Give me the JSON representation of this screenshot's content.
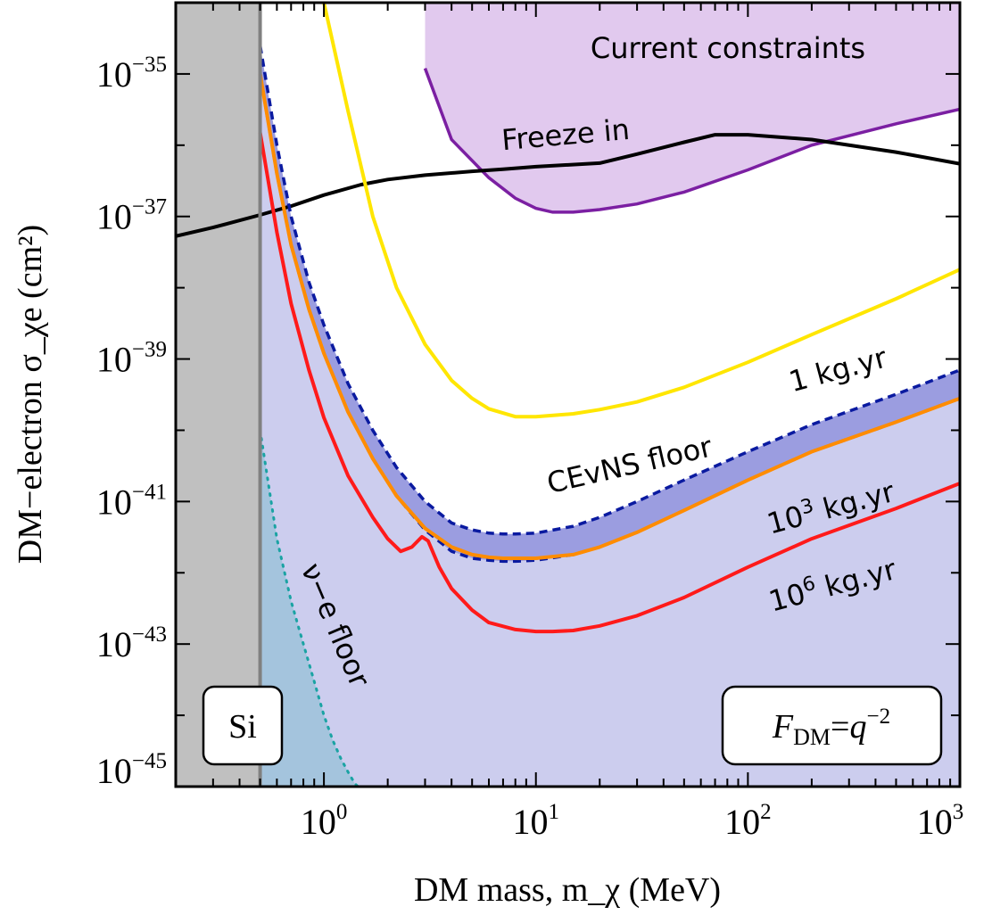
{
  "chart_data": {
    "type": "line",
    "title": "",
    "xlabel": "DM mass, m_χ (MeV)",
    "ylabel": "DM−electron σ_χe (cm²)",
    "xscale": "log",
    "yscale": "log",
    "xlim": [
      0.2,
      1000
    ],
    "ylim": [
      1e-45,
      1e-34
    ],
    "x_ticks": [
      {
        "base": "10",
        "exp": "0",
        "value": 1
      },
      {
        "base": "10",
        "exp": "1",
        "value": 10
      },
      {
        "base": "10",
        "exp": "2",
        "value": 100
      },
      {
        "base": "10",
        "exp": "3",
        "value": 1000
      }
    ],
    "y_ticks": [
      {
        "base": "10",
        "exp": "−35",
        "value": 1e-35
      },
      {
        "base": "10",
        "exp": "−37",
        "value": 1e-37
      },
      {
        "base": "10",
        "exp": "−39",
        "value": 1e-39
      },
      {
        "base": "10",
        "exp": "−41",
        "value": 1e-41
      },
      {
        "base": "10",
        "exp": "−43",
        "value": 1e-43
      },
      {
        "base": "10",
        "exp": "−45",
        "value": 1e-45
      }
    ],
    "threshold_mass": 0.5,
    "regions": [
      {
        "name": "Si threshold",
        "color": "#c0c0c0",
        "x_range": [
          0.2,
          0.5
        ]
      },
      {
        "name": "Current constraints",
        "color": "#e1c9ee",
        "edge_color": "#7b1fa2",
        "x": [
          3,
          4,
          6,
          8,
          10,
          12,
          15,
          20,
          30,
          50,
          100,
          200,
          500,
          1000
        ],
        "y": [
          1.2e-35,
          1.2e-36,
          3.5e-37,
          1.8e-37,
          1.3e-37,
          1.15e-37,
          1.15e-37,
          1.25e-37,
          1.5e-37,
          2.2e-37,
          4.5e-37,
          1e-36,
          2e-36,
          3.2e-36
        ]
      }
    ],
    "series": [
      {
        "name": "Freeze in",
        "color": "#000000",
        "x": [
          0.2,
          0.3,
          0.5,
          0.7,
          1,
          1.5,
          2,
          3,
          5,
          7,
          10,
          20,
          30,
          50,
          70,
          100,
          200,
          500,
          1000
        ],
        "y": [
          5.3e-38,
          7e-38,
          1.05e-37,
          1.4e-37,
          2e-37,
          2.8e-37,
          3.3e-37,
          3.8e-37,
          4.3e-37,
          4.6e-37,
          5e-37,
          5.6e-37,
          7.5e-37,
          1.1e-36,
          1.4e-36,
          1.4e-36,
          1.2e-36,
          8e-37,
          5.5e-37
        ]
      },
      {
        "name": "1 kg.yr",
        "color": "#ffe600",
        "x": [
          1.0,
          1.3,
          1.7,
          2.2,
          3,
          4,
          5,
          6,
          8,
          10,
          15,
          20,
          30,
          50,
          100,
          200,
          500,
          1000
        ],
        "y": [
          1e-34,
          3e-36,
          1e-37,
          1e-38,
          1.6e-39,
          5e-40,
          2.8e-40,
          2e-40,
          1.55e-40,
          1.55e-40,
          1.7e-40,
          1.95e-40,
          2.5e-40,
          4e-40,
          9e-40,
          2.2e-39,
          7e-39,
          1.8e-38
        ]
      },
      {
        "name": "CEvNS floor (upper)",
        "color": "#0a1aa0",
        "dashed": true,
        "x": [
          0.5,
          0.6,
          0.7,
          0.85,
          1,
          1.3,
          1.7,
          2.2,
          3,
          4,
          5,
          6,
          7,
          8,
          10,
          15,
          20,
          30,
          50,
          100,
          200,
          500,
          1000
        ],
        "y": [
          2.5e-35,
          1e-36,
          1e-37,
          1.2e-38,
          3e-39,
          4.5e-40,
          1e-40,
          3e-41,
          1e-41,
          5e-42,
          4e-42,
          3.6e-42,
          3.5e-42,
          3.5e-42,
          3.6e-42,
          4.5e-42,
          6e-42,
          1e-41,
          2e-41,
          5e-41,
          1.2e-40,
          3.2e-40,
          7e-40
        ]
      },
      {
        "name": "CEvNS floor (lower)",
        "color": "#0a1aa0",
        "dashed": true,
        "x": [
          0.5,
          0.6,
          0.7,
          0.85,
          1,
          1.3,
          1.7,
          2.2,
          3,
          4,
          5,
          6,
          7,
          8,
          10,
          15,
          20,
          30,
          50,
          100,
          200,
          500,
          1000
        ],
        "y": [
          1e-35,
          4e-37,
          4e-38,
          5e-39,
          1.2e-39,
          1.8e-40,
          4e-41,
          1.2e-41,
          4e-42,
          2e-42,
          1.6e-42,
          1.5e-42,
          1.45e-42,
          1.45e-42,
          1.5e-42,
          1.8e-42,
          2.3e-42,
          3.7e-42,
          7.5e-42,
          2e-41,
          5e-41,
          1.3e-40,
          2.8e-40
        ]
      },
      {
        "name": "10³ kg.yr",
        "color": "#ff8c00",
        "x": [
          0.5,
          0.6,
          0.7,
          0.85,
          1,
          1.3,
          1.7,
          2.2,
          3,
          4,
          5,
          6,
          7,
          8,
          10,
          15,
          20,
          30,
          50,
          100,
          200,
          500,
          1000
        ],
        "y": [
          1e-35,
          4e-37,
          4e-38,
          5e-39,
          1.2e-39,
          1.8e-40,
          4e-41,
          1.2e-41,
          4.2e-42,
          2.3e-42,
          1.8e-42,
          1.65e-42,
          1.6e-42,
          1.6e-42,
          1.6e-42,
          1.8e-42,
          2.3e-42,
          3.7e-42,
          7.5e-42,
          2e-41,
          5e-41,
          1.3e-40,
          2.8e-40
        ]
      },
      {
        "name": "10⁶ kg.yr",
        "color": "#ff1a1a",
        "x": [
          0.5,
          0.6,
          0.7,
          0.85,
          1,
          1.3,
          1.7,
          2.0,
          2.3,
          2.6,
          2.9,
          3.1,
          3.5,
          4,
          5,
          6,
          8,
          10,
          12,
          15,
          20,
          30,
          50,
          100,
          200,
          500,
          1000
        ],
        "y": [
          1.5e-36,
          6e-38,
          6e-39,
          7e-40,
          1.5e-40,
          2.3e-41,
          6e-42,
          3e-42,
          2e-42,
          2.3e-42,
          3.2e-42,
          2.8e-42,
          1.2e-42,
          6e-43,
          3e-43,
          2e-43,
          1.6e-43,
          1.5e-43,
          1.5e-43,
          1.55e-43,
          1.8e-43,
          2.5e-43,
          4.5e-43,
          1.2e-42,
          3e-42,
          8e-42,
          1.8e-41
        ]
      },
      {
        "name": "ν−e floor",
        "color": "#1aa3a3",
        "dotted": true,
        "x": [
          0.5,
          0.6,
          0.7,
          0.8,
          0.9,
          1.0,
          1.1,
          1.2,
          1.3,
          1.4,
          1.45
        ],
        "y": [
          1e-40,
          3e-42,
          4e-43,
          1e-43,
          3e-44,
          1e-44,
          4.5e-45,
          2.5e-45,
          1.6e-45,
          1.1e-45,
          1e-45
        ]
      }
    ],
    "labels": [
      {
        "text": "Current constraints",
        "color": "#7b1fa2"
      },
      {
        "text": "Freeze in",
        "color": "#000000"
      },
      {
        "text": "1 kg.yr",
        "color": "#ffd000"
      },
      {
        "text": "CEvNS floor",
        "color": "#0a1aa0"
      },
      {
        "text_base": "10",
        "text_exp": "3",
        "text_rest": " kg.yr",
        "color": "#ff8c00"
      },
      {
        "text_base": "10",
        "text_exp": "6",
        "text_rest": " kg.yr",
        "color": "#ff1a1a"
      },
      {
        "text": "ν−e floor",
        "color": "#1aa3a3"
      }
    ],
    "boxes": [
      {
        "name": "material",
        "text": "Si"
      },
      {
        "name": "form-factor",
        "text_main": "F",
        "text_sub": "DM",
        "text_eq": "=",
        "text_q": "q",
        "text_exp": "−2"
      }
    ],
    "colors": {
      "neutrino_fog": "#cccdee",
      "ve_region": "#a4c4dd",
      "cevns_band": "#9b9de0",
      "si_region": "#c0c0c0",
      "threshold_line": "#808080"
    }
  }
}
